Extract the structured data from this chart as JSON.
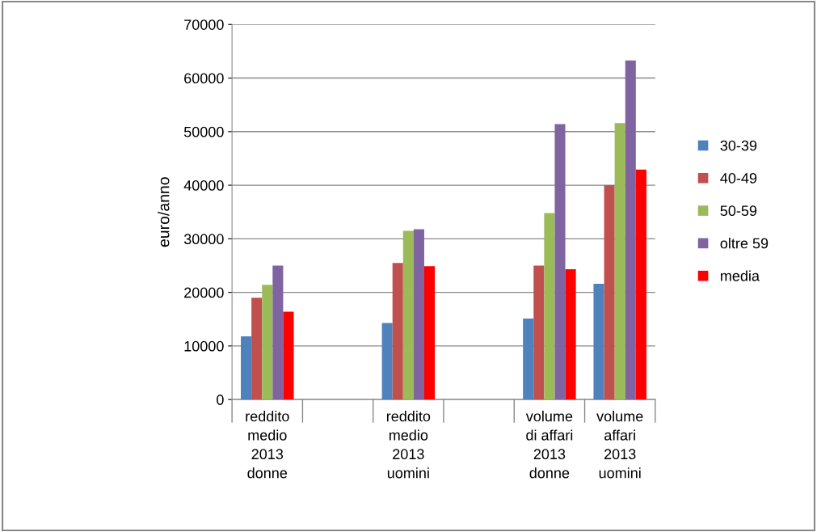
{
  "chart_data": {
    "type": "bar",
    "ylabel": "euro/anno",
    "categories": [
      "reddito\nmedio\n2013\ndonne",
      null,
      "reddito\nmedio\n2013\nuomini",
      null,
      "volume\ndi affari\n2013\ndonne",
      "volume\naffari\n2013\nuomini"
    ],
    "series": [
      {
        "name": "30-39",
        "color": "#4f81bd",
        "values": [
          11800,
          null,
          14300,
          null,
          15100,
          21600
        ]
      },
      {
        "name": "40-49",
        "color": "#c0504d",
        "values": [
          19000,
          null,
          25500,
          null,
          25000,
          40000
        ]
      },
      {
        "name": "50-59",
        "color": "#9bbb59",
        "values": [
          21400,
          null,
          31500,
          null,
          34800,
          51600
        ]
      },
      {
        "name": "oltre 59",
        "color": "#8064a2",
        "values": [
          25000,
          null,
          31800,
          null,
          51400,
          63300
        ]
      },
      {
        "name": "media",
        "color": "#ff0000",
        "values": [
          16400,
          null,
          24900,
          null,
          24300,
          42900
        ]
      }
    ],
    "ylim": [
      0,
      70000
    ],
    "yticks": [
      0,
      10000,
      20000,
      30000,
      40000,
      50000,
      60000,
      70000
    ],
    "grid": "y",
    "legend": "right"
  }
}
